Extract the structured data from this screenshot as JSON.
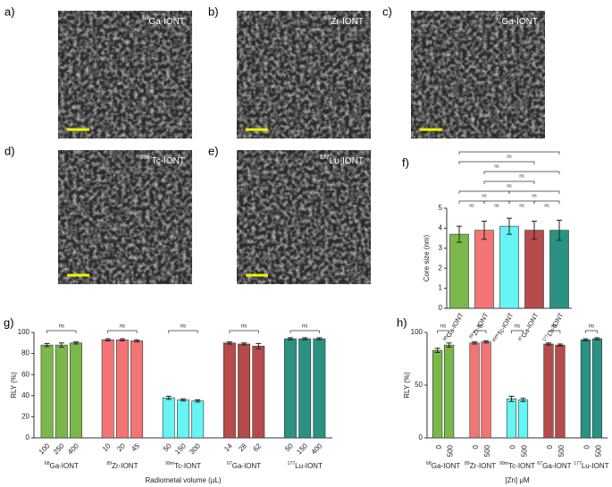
{
  "panels": [
    {
      "panel": "a)",
      "label": {
        "isotope": "68",
        "name": "Ga-IONT"
      }
    },
    {
      "panel": "b)",
      "label": {
        "isotope": "89",
        "name": "Zr-IONT"
      }
    },
    {
      "panel": "c)",
      "label": {
        "isotope": "67",
        "name": "Ga-IONT"
      }
    },
    {
      "panel": "d)",
      "label": {
        "isotope": "99m",
        "name": "Tc-IONT"
      }
    },
    {
      "panel": "e)",
      "label": {
        "isotope": "177",
        "name": "Lu-IONT"
      }
    }
  ],
  "chart_data": [
    {
      "type": "bar",
      "panel": "f)",
      "ylabel": "Core size (nm)",
      "categories": [
        {
          "isotope": "68",
          "name": "Ga-IONT"
        },
        {
          "isotope": "89",
          "name": "Zr-IONT"
        },
        {
          "isotope": "99m",
          "name": "Tc-IONT"
        },
        {
          "isotope": "67",
          "name": "Ga-IONT"
        },
        {
          "isotope": "177",
          "name": "Lu-IONT"
        }
      ],
      "values": [
        3.7,
        3.9,
        4.1,
        3.9,
        3.9
      ],
      "errors": [
        0.4,
        0.45,
        0.4,
        0.45,
        0.5
      ],
      "colors": [
        "#7bb84a",
        "#f27474",
        "#66f4f4",
        "#b54b4b",
        "#2a9282"
      ],
      "ylim": [
        0,
        5
      ],
      "yticks": [
        0,
        1,
        2,
        3,
        4,
        5
      ],
      "brackets": [
        {
          "from": 0,
          "to": 1,
          "label": "ns"
        },
        {
          "from": 1,
          "to": 2,
          "label": "ns"
        },
        {
          "from": 2,
          "to": 3,
          "label": "ns"
        },
        {
          "from": 3,
          "to": 4,
          "label": "ns"
        },
        {
          "from": 0,
          "to": 2,
          "label": "ns"
        },
        {
          "from": 2,
          "to": 4,
          "label": "ns"
        },
        {
          "from": 1,
          "to": 3,
          "label": "ns"
        },
        {
          "from": 1,
          "to": 4,
          "label": "ns"
        },
        {
          "from": 0,
          "to": 3,
          "label": "ns"
        },
        {
          "from": 0,
          "to": 4,
          "label": "ns"
        }
      ]
    },
    {
      "type": "grouped-bar",
      "panel": "g)",
      "ylabel": "RLY (%)",
      "xlabel": "Radiometal volume (μL)",
      "ylim": [
        0,
        100
      ],
      "yticks": [
        0,
        20,
        40,
        60,
        80,
        100
      ],
      "groups": [
        {
          "name": {
            "isotope": "68",
            "name": "Ga-IONT"
          },
          "color": "#7bb84a",
          "categories": [
            "100",
            "250",
            "400"
          ],
          "values": [
            88,
            88,
            90
          ],
          "errors": [
            1.5,
            2,
            1
          ],
          "bracket": "ns"
        },
        {
          "name": {
            "isotope": "89",
            "name": "Zr-IONT"
          },
          "color": "#f27474",
          "categories": [
            "10",
            "20",
            "45"
          ],
          "values": [
            93,
            93,
            92
          ],
          "errors": [
            1,
            1,
            1
          ],
          "bracket": "ns"
        },
        {
          "name": {
            "isotope": "99m",
            "name": "Tc-IONT"
          },
          "color": "#66f4f4",
          "categories": [
            "50",
            "150",
            "300"
          ],
          "values": [
            38,
            36,
            35
          ],
          "errors": [
            1.5,
            1,
            1
          ],
          "bracket": "ns"
        },
        {
          "name": {
            "isotope": "67",
            "name": "Ga-IONT"
          },
          "color": "#b54b4b",
          "categories": [
            "14",
            "28",
            "62"
          ],
          "values": [
            90,
            89,
            87
          ],
          "errors": [
            1,
            1,
            2.5
          ],
          "bracket": "ns"
        },
        {
          "name": {
            "isotope": "177",
            "name": "Lu-IONT"
          },
          "color": "#2a9282",
          "categories": [
            "50",
            "150",
            "400"
          ],
          "values": [
            94,
            94,
            94
          ],
          "errors": [
            1,
            1,
            1
          ],
          "bracket": "ns"
        }
      ]
    },
    {
      "type": "grouped-bar",
      "panel": "h)",
      "ylabel": "RLY (%)",
      "xlabel": "[Zn] μM",
      "ylim": [
        0,
        100
      ],
      "yticks": [
        0,
        50,
        100
      ],
      "groups": [
        {
          "name": {
            "isotope": "68",
            "name": "Ga-IONT"
          },
          "color": "#7bb84a",
          "categories": [
            "0",
            "500"
          ],
          "values": [
            83,
            88
          ],
          "errors": [
            2,
            2
          ],
          "bracket": "ns"
        },
        {
          "name": {
            "isotope": "89",
            "name": "Zr-IONT"
          },
          "color": "#f27474",
          "categories": [
            "0",
            "500"
          ],
          "values": [
            90,
            91
          ],
          "errors": [
            1,
            1
          ],
          "bracket": "ns"
        },
        {
          "name": {
            "isotope": "99m",
            "name": "Tc-IONT"
          },
          "color": "#66f4f4",
          "categories": [
            "0",
            "500"
          ],
          "values": [
            37,
            36
          ],
          "errors": [
            2.5,
            1.5
          ],
          "bracket": "ns"
        },
        {
          "name": {
            "isotope": "67",
            "name": "Ga-IONT"
          },
          "color": "#b54b4b",
          "categories": [
            "0",
            "500"
          ],
          "values": [
            89,
            88
          ],
          "errors": [
            1,
            1
          ],
          "bracket": "ns"
        },
        {
          "name": {
            "isotope": "177",
            "name": "Lu-IONT"
          },
          "color": "#2a9282",
          "categories": [
            "0",
            "500"
          ],
          "values": [
            93,
            94
          ],
          "errors": [
            1,
            1
          ],
          "bracket": "ns"
        }
      ]
    }
  ]
}
